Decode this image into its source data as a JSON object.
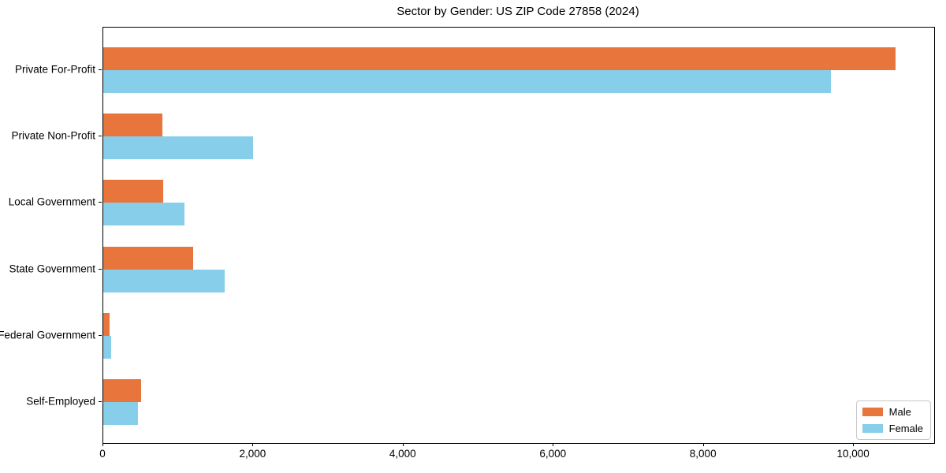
{
  "chart_data": {
    "type": "bar",
    "orientation": "horizontal",
    "title": "Sector by Gender: US ZIP Code 27858 (2024)",
    "categories": [
      "Private For-Profit",
      "Private Non-Profit",
      "Local Government",
      "State Government",
      "Federal Government",
      "Self-Employed"
    ],
    "series": [
      {
        "name": "Male",
        "color": "#e8763c",
        "values": [
          10550,
          790,
          800,
          1200,
          80,
          500
        ]
      },
      {
        "name": "Female",
        "color": "#87ceeb",
        "values": [
          9690,
          2000,
          1080,
          1620,
          100,
          460
        ]
      }
    ],
    "xlabel": "",
    "ylabel": "",
    "xlim": [
      0,
      11070
    ],
    "xticks": {
      "values": [
        0,
        2000,
        4000,
        6000,
        8000,
        10000
      ],
      "labels": [
        "0",
        "2,000",
        "4,000",
        "6,000",
        "8,000",
        "10,000"
      ]
    },
    "grid": false,
    "legend_position": "lower right",
    "background_color": "#ffffff",
    "axis_color": "#000000"
  }
}
